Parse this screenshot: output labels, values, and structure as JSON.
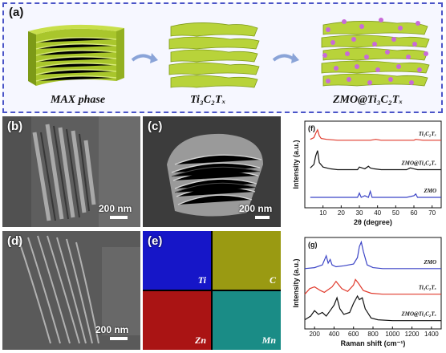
{
  "panel_a": {
    "label": "(a)",
    "captions": [
      "MAX phase",
      "Ti₃C₂Tₓ",
      "ZMO@Ti₃C₂Tₓ"
    ],
    "colors": {
      "border": "#4b55c8",
      "layer": "#b8d33a",
      "layer_dark": "#7d9a17",
      "sphere": "#c86ad8",
      "arrow": "#8aa4d8"
    }
  },
  "panels": {
    "b": {
      "label": "(b)",
      "scalebar": "200 nm"
    },
    "c": {
      "label": "(c)",
      "scalebar": "200 nm"
    },
    "d": {
      "label": "(d)",
      "scalebar": "200 nm"
    },
    "e": {
      "label": "(e)",
      "tiles": [
        {
          "element": "Ti",
          "color": "#1616c8"
        },
        {
          "element": "C",
          "color": "#9a9a12"
        },
        {
          "element": "Zn",
          "color": "#aa1414"
        },
        {
          "element": "Mn",
          "color": "#1a8c86"
        }
      ]
    }
  },
  "chart_data": [
    {
      "type": "line",
      "panel": "(f)",
      "xlabel": "2θ (degree)",
      "ylabel": "Intensity (a.u.)",
      "xlim": [
        0,
        75
      ],
      "xticks": [
        10,
        20,
        30,
        40,
        50,
        60,
        70
      ],
      "series": [
        {
          "name": "Ti₃C₂Tₓ",
          "color": "#e03a2c",
          "x": [
            3,
            5,
            6,
            7,
            8,
            9,
            12,
            18,
            25,
            30,
            36,
            39,
            42,
            48,
            55,
            60,
            61,
            65,
            70,
            75
          ],
          "y": [
            0.79,
            0.81,
            0.86,
            0.9,
            0.83,
            0.8,
            0.79,
            0.78,
            0.78,
            0.78,
            0.78,
            0.79,
            0.78,
            0.78,
            0.78,
            0.78,
            0.79,
            0.78,
            0.78,
            0.78
          ]
        },
        {
          "name": "ZMO@Ti₃C₂Tₓ",
          "color": "#111111",
          "x": [
            3,
            5,
            6,
            7,
            8,
            10,
            14,
            18,
            25,
            29,
            30,
            33,
            35,
            36,
            38,
            42,
            50,
            56,
            58,
            60,
            62,
            65,
            70,
            75
          ],
          "y": [
            0.46,
            0.5,
            0.6,
            0.66,
            0.52,
            0.47,
            0.45,
            0.44,
            0.44,
            0.44,
            0.47,
            0.45,
            0.48,
            0.46,
            0.45,
            0.44,
            0.44,
            0.44,
            0.46,
            0.45,
            0.44,
            0.44,
            0.44,
            0.44
          ]
        },
        {
          "name": "ZMO",
          "color": "#3b44c6",
          "x": [
            3,
            10,
            18,
            25,
            29,
            30,
            31,
            33,
            35,
            36,
            37,
            40,
            50,
            56,
            58,
            60,
            61,
            62,
            65,
            70,
            75
          ],
          "y": [
            0.12,
            0.12,
            0.12,
            0.12,
            0.12,
            0.17,
            0.12,
            0.14,
            0.12,
            0.19,
            0.12,
            0.12,
            0.12,
            0.12,
            0.13,
            0.14,
            0.16,
            0.12,
            0.12,
            0.12,
            0.12
          ]
        }
      ]
    },
    {
      "type": "line",
      "panel": "(g)",
      "xlabel": "Raman shift (cm⁻¹)",
      "ylabel": "Intensity (a.u.)",
      "xlim": [
        100,
        1500
      ],
      "xticks": [
        200,
        400,
        600,
        800,
        1000,
        1200,
        1400
      ],
      "series": [
        {
          "name": "ZMO",
          "color": "#3b44c6",
          "x": [
            100,
            200,
            280,
            320,
            340,
            360,
            380,
            420,
            500,
            600,
            640,
            660,
            680,
            700,
            740,
            800,
            900,
            1100,
            1300,
            1500
          ],
          "y": [
            0.66,
            0.67,
            0.7,
            0.8,
            0.72,
            0.76,
            0.7,
            0.68,
            0.69,
            0.71,
            0.78,
            0.9,
            0.95,
            0.85,
            0.7,
            0.67,
            0.66,
            0.66,
            0.66,
            0.66
          ]
        },
        {
          "name": "Ti₃C₂Tₓ",
          "color": "#e03a2c",
          "x": [
            100,
            150,
            200,
            260,
            300,
            380,
            420,
            480,
            540,
            600,
            620,
            650,
            700,
            780,
            900,
            1100,
            1300,
            1500
          ],
          "y": [
            0.38,
            0.44,
            0.46,
            0.42,
            0.4,
            0.46,
            0.52,
            0.44,
            0.41,
            0.48,
            0.54,
            0.5,
            0.42,
            0.39,
            0.38,
            0.38,
            0.38,
            0.38
          ]
        },
        {
          "name": "ZMO@Ti₃C₂Tₓ",
          "color": "#111111",
          "x": [
            100,
            160,
            200,
            240,
            280,
            320,
            360,
            400,
            430,
            460,
            500,
            560,
            600,
            640,
            660,
            690,
            720,
            780,
            850,
            1000,
            1200,
            1500
          ],
          "y": [
            0.1,
            0.14,
            0.2,
            0.16,
            0.18,
            0.14,
            0.2,
            0.26,
            0.34,
            0.22,
            0.16,
            0.18,
            0.28,
            0.36,
            0.32,
            0.34,
            0.22,
            0.12,
            0.1,
            0.09,
            0.09,
            0.09
          ]
        }
      ]
    }
  ]
}
